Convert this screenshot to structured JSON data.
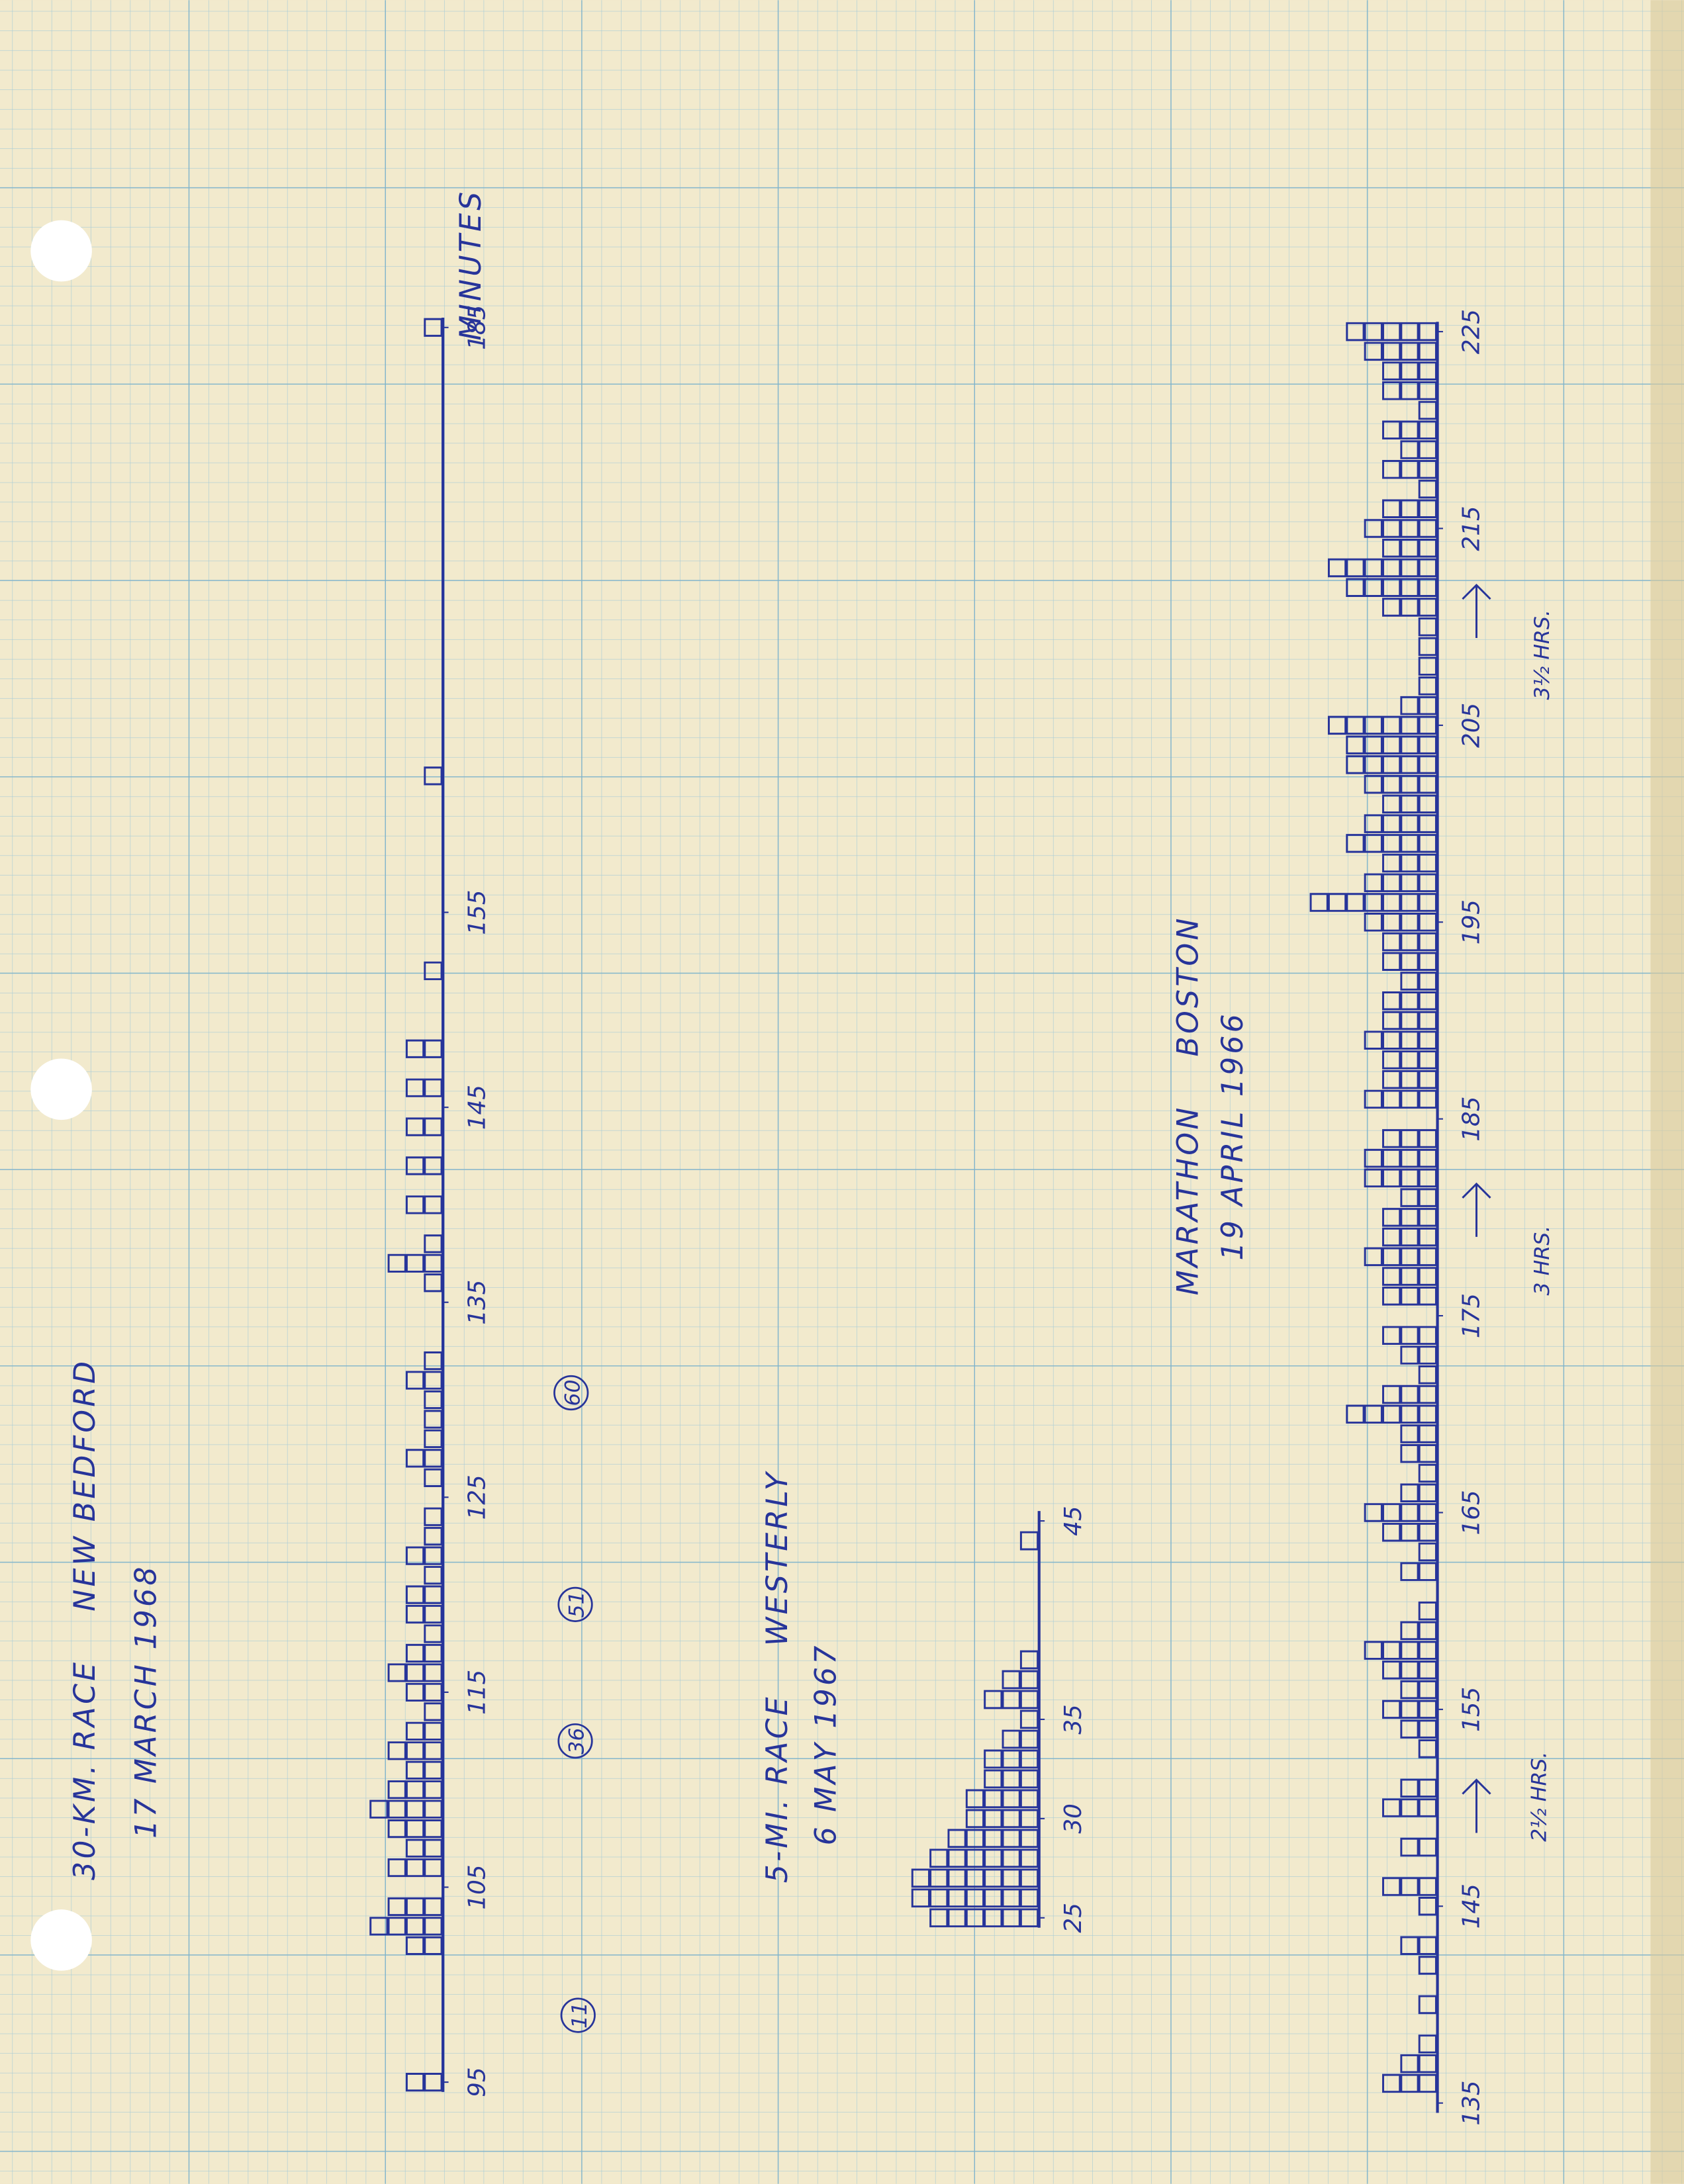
{
  "chart_data": [
    {
      "type": "unit-histogram",
      "title": "30-KM. RACE    NEW BEDFORD",
      "subtitle": "17 MARCH 1968",
      "axis_label": "MINUTES",
      "x": [
        95,
        102,
        103,
        104,
        106,
        107,
        108,
        109,
        110,
        111,
        112,
        113,
        114,
        115,
        116,
        117,
        118,
        119,
        120,
        121,
        122,
        123,
        124,
        126,
        127,
        128,
        129,
        130,
        131,
        132,
        136,
        137,
        138,
        140,
        142,
        144,
        146,
        148,
        152,
        162,
        185
      ],
      "values": [
        2,
        2,
        4,
        3,
        3,
        2,
        3,
        4,
        3,
        2,
        3,
        2,
        1,
        2,
        3,
        2,
        1,
        2,
        2,
        1,
        2,
        1,
        1,
        1,
        2,
        1,
        1,
        1,
        2,
        1,
        1,
        3,
        1,
        2,
        2,
        2,
        2,
        2,
        1,
        1,
        1
      ],
      "xlim": [
        95,
        185
      ],
      "xticks": [
        95,
        105,
        115,
        125,
        135,
        145,
        155,
        185
      ],
      "color": "#27349a",
      "circled": [
        11,
        36,
        51,
        60
      ]
    },
    {
      "type": "unit-histogram",
      "title": "5-MI. RACE    WESTERLY",
      "subtitle": "6 MAY 1967",
      "x": [
        25,
        26,
        27,
        28,
        29,
        30,
        31,
        32,
        33,
        34,
        35,
        36,
        37,
        38,
        44
      ],
      "values": [
        6,
        7,
        7,
        6,
        5,
        4,
        4,
        3,
        3,
        2,
        1,
        3,
        2,
        1,
        1
      ],
      "xlim": [
        25,
        45
      ],
      "xticks": [
        25,
        30,
        35,
        45
      ],
      "color": "#27349a"
    },
    {
      "type": "unit-histogram",
      "title": "MARATHON    BOSTON",
      "subtitle": "19 APRIL 1966",
      "x": [
        136,
        137,
        138,
        140,
        142,
        143,
        145,
        146,
        148,
        150,
        151,
        153,
        154,
        155,
        156,
        157,
        158,
        159,
        160,
        162,
        163,
        164,
        165,
        166,
        167,
        168,
        169,
        170,
        171,
        172,
        173,
        174,
        176,
        177,
        178,
        179,
        180,
        181,
        182,
        183,
        184,
        186,
        187,
        188,
        189,
        190,
        191,
        192,
        193,
        194,
        195,
        196,
        197,
        198,
        199,
        200,
        201,
        202,
        203,
        204,
        205,
        206,
        207,
        208,
        209,
        210,
        211,
        212,
        213,
        214,
        215,
        216,
        217,
        218,
        219,
        220,
        221,
        222,
        223,
        224,
        225
      ],
      "values": [
        3,
        2,
        1,
        1,
        1,
        2,
        1,
        3,
        2,
        3,
        2,
        1,
        2,
        3,
        2,
        3,
        4,
        2,
        1,
        2,
        1,
        3,
        4,
        2,
        1,
        2,
        2,
        5,
        3,
        1,
        2,
        3,
        3,
        3,
        4,
        3,
        3,
        2,
        4,
        4,
        3,
        4,
        3,
        3,
        4,
        3,
        3,
        2,
        3,
        3,
        4,
        7,
        4,
        3,
        5,
        4,
        3,
        4,
        5,
        5,
        6,
        2,
        1,
        1,
        1,
        1,
        3,
        5,
        6,
        3,
        4,
        3,
        1,
        3,
        2,
        3,
        1,
        3,
        3,
        4,
        5
      ],
      "xlim": [
        135,
        225
      ],
      "xticks": [
        135,
        145,
        155,
        165,
        175,
        185,
        195,
        205,
        215,
        225
      ],
      "color": "#27349a",
      "annotations": [
        "2½ HRS.",
        "3 HRS.",
        "3½ HRS."
      ]
    }
  ]
}
